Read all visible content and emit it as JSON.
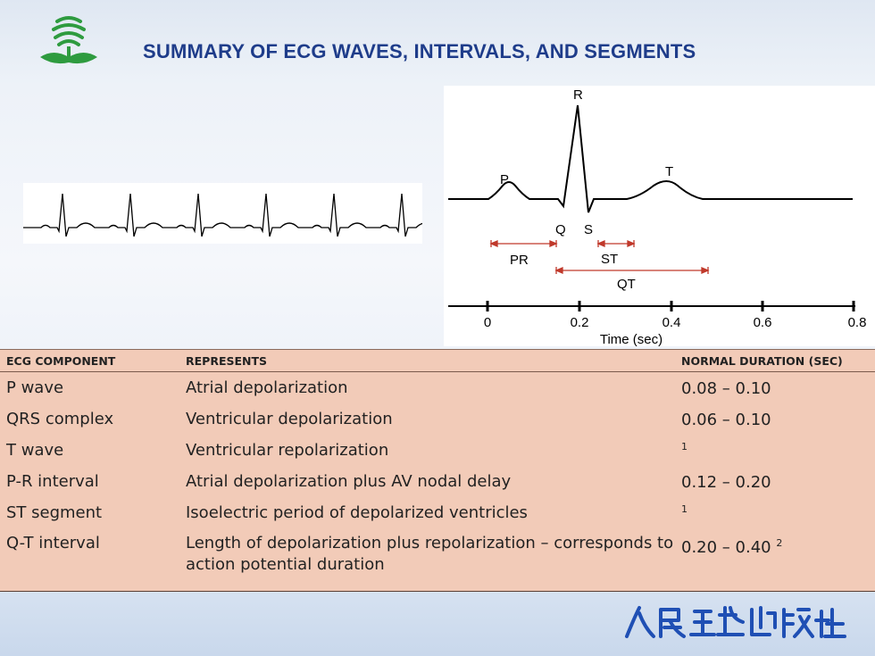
{
  "title": "SUMMARY OF ECG WAVES, INTERVALS, AND SEGMENTS",
  "diagram": {
    "wave_labels": {
      "P": "P",
      "Q": "Q",
      "R": "R",
      "S": "S",
      "T": "T"
    },
    "interval_labels": {
      "PR": "PR",
      "ST": "ST",
      "QT": "QT"
    },
    "axis": {
      "ticks": [
        "0",
        "0.2",
        "0.4",
        "0.6",
        "0.8"
      ],
      "label": "Time (sec)"
    },
    "accent_color": "#c0392b"
  },
  "table": {
    "headers": [
      "ECG COMPONENT",
      "REPRESENTS",
      "NORMAL DURATION (SEC)"
    ],
    "rows": [
      {
        "component": "P wave",
        "represents": "Atrial depolarization",
        "duration": "0.08 – 0.10",
        "note": ""
      },
      {
        "component": "QRS complex",
        "represents": "Ventricular depolarization",
        "duration": "0.06 – 0.10",
        "note": ""
      },
      {
        "component": "T wave",
        "represents": "Ventricular repolarization",
        "duration": "",
        "note": "1"
      },
      {
        "component": "P-R interval",
        "represents": "Atrial depolarization plus AV nodal delay",
        "duration": "0.12 – 0.20",
        "note": ""
      },
      {
        "component": "ST segment",
        "represents": "Isoelectric period of depolarized ventricles",
        "duration": "",
        "note": "1"
      },
      {
        "component": "Q-T interval",
        "represents": "Length of depolarization plus repolarization – corresponds to action potential duration",
        "duration": "0.20 – 0.40",
        "note": "2"
      }
    ]
  },
  "footer": {
    "publisher_logo": "人民卫生出版社"
  },
  "colors": {
    "title": "#1e3c8a",
    "table_bg": "#f2cbb8",
    "brand_blue": "#1f4fb4",
    "logo_green": "#2e9b3f"
  }
}
